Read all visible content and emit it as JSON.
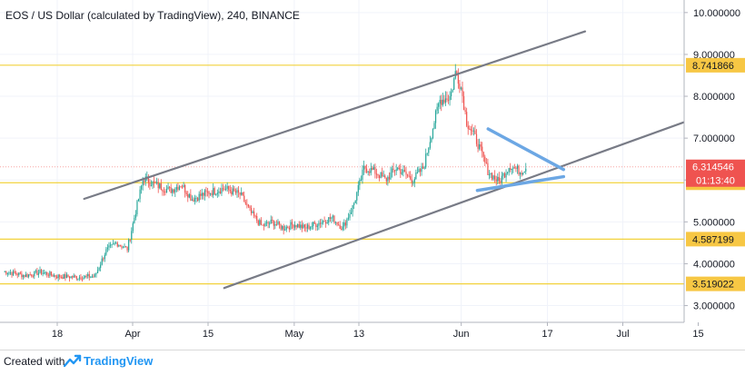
{
  "chart_data": {
    "type": "candlestick",
    "title": "EOS / US Dollar (calculated by TradingView), 240, BINANCE",
    "ylim": [
      2.6,
      10.3
    ],
    "y_ticks": [
      "10.000000",
      "9.000000",
      "8.000000",
      "7.000000",
      "6.000000",
      "5.000000",
      "4.000000",
      "3.000000"
    ],
    "x_ticks": [
      {
        "label": "18",
        "date": "2019-03-18"
      },
      {
        "label": "Apr",
        "date": "2019-04-01"
      },
      {
        "label": "15",
        "date": "2019-04-15"
      },
      {
        "label": "May",
        "date": "2019-05-01"
      },
      {
        "label": "13",
        "date": "2019-05-13"
      },
      {
        "label": "Jun",
        "date": "2019-06-01"
      },
      {
        "label": "17",
        "date": "2019-06-17"
      },
      {
        "label": "Jul",
        "date": "2019-07-01"
      },
      {
        "label": "15",
        "date": "2019-07-15"
      }
    ],
    "price_series": [
      [
        "2019-03-08",
        3.82
      ],
      [
        "2019-03-12",
        3.72
      ],
      [
        "2019-03-15",
        3.8
      ],
      [
        "2019-03-18",
        3.7
      ],
      [
        "2019-03-22",
        3.68
      ],
      [
        "2019-03-25",
        3.7
      ],
      [
        "2019-03-27",
        4.3
      ],
      [
        "2019-03-29",
        4.5
      ],
      [
        "2019-03-31",
        4.35
      ],
      [
        "2019-04-02",
        5.5
      ],
      [
        "2019-04-03",
        6.05
      ],
      [
        "2019-04-05",
        5.9
      ],
      [
        "2019-04-08",
        5.75
      ],
      [
        "2019-04-10",
        5.9
      ],
      [
        "2019-04-12",
        5.55
      ],
      [
        "2019-04-15",
        5.7
      ],
      [
        "2019-04-18",
        5.8
      ],
      [
        "2019-04-21",
        5.65
      ],
      [
        "2019-04-23",
        5.2
      ],
      [
        "2019-04-25",
        4.9
      ],
      [
        "2019-04-27",
        5.0
      ],
      [
        "2019-04-29",
        4.85
      ],
      [
        "2019-05-01",
        4.95
      ],
      [
        "2019-05-03",
        4.85
      ],
      [
        "2019-05-06",
        5.0
      ],
      [
        "2019-05-08",
        5.1
      ],
      [
        "2019-05-10",
        4.85
      ],
      [
        "2019-05-12",
        5.4
      ],
      [
        "2019-05-14",
        6.3
      ],
      [
        "2019-05-16",
        6.2
      ],
      [
        "2019-05-18",
        6.0
      ],
      [
        "2019-05-20",
        6.3
      ],
      [
        "2019-05-23",
        6.0
      ],
      [
        "2019-05-25",
        6.3
      ],
      [
        "2019-05-27",
        7.4
      ],
      [
        "2019-05-28",
        7.9
      ],
      [
        "2019-05-30",
        8.0
      ],
      [
        "2019-05-31",
        8.6
      ],
      [
        "2019-06-01",
        8.2
      ],
      [
        "2019-06-02",
        7.4
      ],
      [
        "2019-06-04",
        6.9
      ],
      [
        "2019-06-06",
        6.2
      ],
      [
        "2019-06-08",
        5.95
      ],
      [
        "2019-06-10",
        6.35
      ],
      [
        "2019-06-12",
        6.2
      ],
      [
        "2019-06-13",
        6.31
      ]
    ],
    "horizontal_levels": [
      {
        "price": 8.741866,
        "label": "8.741866"
      },
      {
        "price": 5.934141,
        "label": "5.934141"
      },
      {
        "price": 4.587199,
        "label": "4.587199"
      },
      {
        "price": 3.519022,
        "label": "3.519022"
      }
    ],
    "current_price": {
      "price": 6.314546,
      "label": "6.314546",
      "countdown": "01:13:40"
    },
    "trendlines": [
      {
        "name": "channel-upper",
        "from": [
          "2019-03-23",
          5.55
        ],
        "to": [
          "2019-06-24",
          9.55
        ],
        "color": "#787b86"
      },
      {
        "name": "channel-lower",
        "from": [
          "2019-04-18",
          3.42
        ],
        "to": [
          "2019-07-16",
          7.55
        ],
        "color": "#787b86"
      },
      {
        "name": "triangle-upper",
        "from": [
          "2019-06-06",
          7.22
        ],
        "to": [
          "2019-06-20",
          6.25
        ],
        "color": "#6ca7e4"
      },
      {
        "name": "triangle-lower",
        "from": [
          "2019-06-04",
          5.75
        ],
        "to": [
          "2019-06-20",
          6.08
        ],
        "color": "#6ca7e4"
      }
    ],
    "colors": {
      "up": "#26a69a",
      "down": "#ef5350",
      "level_line": "#f2d23b",
      "label_bg": "#f7c744",
      "price_label_bg": "#ef5350"
    }
  },
  "footer": {
    "created_with": "Created with",
    "brand": "TradingView"
  }
}
